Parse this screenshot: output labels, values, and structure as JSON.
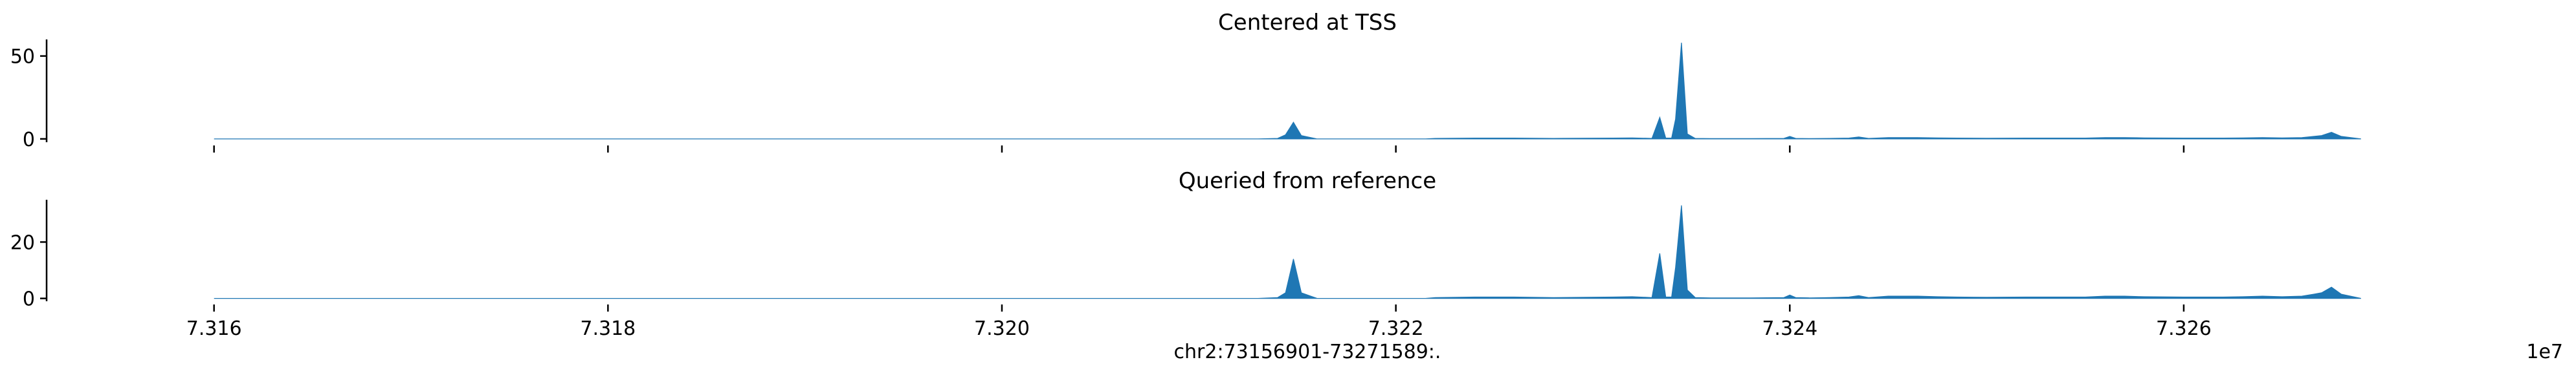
{
  "chart_data": [
    {
      "type": "area",
      "title": "Centered at TSS",
      "xlabel": "",
      "ylabel": "",
      "yticks": [
        0,
        50
      ],
      "ylim": [
        -2,
        60
      ],
      "xlim": [
        73151500,
        73274000
      ],
      "xticks_shown": false,
      "color": "#1f77b4",
      "x": [
        73160000,
        73170000,
        73210000,
        73213000,
        73214000,
        73214400,
        73214800,
        73215200,
        73216000,
        73218000,
        73221500,
        73222000,
        73224000,
        73226000,
        73228000,
        73231000,
        73232000,
        73233000,
        73233400,
        73233700,
        73234000,
        73234200,
        73234500,
        73234800,
        73235200,
        73236000,
        73238000,
        73239700,
        73240000,
        73240300,
        73241000,
        73242000,
        73243000,
        73243500,
        73244000,
        73245000,
        73246500,
        73247500,
        73248500,
        73250000,
        73252000,
        73255000,
        73256000,
        73257000,
        73258000,
        73260000,
        73262000,
        73263000,
        73264000,
        73265000,
        73266000,
        73266600,
        73267000,
        73267500,
        73268000,
        73269000
      ],
      "values": [
        0,
        0,
        0,
        0,
        0.3,
        2.5,
        10,
        2,
        0,
        0,
        0,
        0.3,
        0.5,
        0.5,
        0.3,
        0.5,
        0.6,
        0.3,
        13,
        0.5,
        0.5,
        12,
        58,
        3,
        0.3,
        0.2,
        0.2,
        0.3,
        1.5,
        0.3,
        0.2,
        0.3,
        0.5,
        1.2,
        0.3,
        0.8,
        0.8,
        0.6,
        0.5,
        0.4,
        0.5,
        0.5,
        0.8,
        0.8,
        0.6,
        0.5,
        0.5,
        0.6,
        0.8,
        0.6,
        0.8,
        1.5,
        2,
        4,
        1.5,
        0
      ]
    },
    {
      "type": "area",
      "title": "Queried from reference",
      "xlabel": "chr2:73156901-73271589:.",
      "ylabel": "",
      "yticks": [
        0,
        20
      ],
      "ylim": [
        -1,
        35
      ],
      "xlim": [
        73151500,
        73274000
      ],
      "xticks": [
        7.316,
        7.318,
        7.32,
        7.322,
        7.324,
        7.326
      ],
      "xtick_labels": [
        "7.316",
        "7.318",
        "7.320",
        "7.322",
        "7.324",
        "7.326"
      ],
      "x_offset_label": "1e7",
      "color": "#1f77b4",
      "x": [
        73160000,
        73170000,
        73210000,
        73213000,
        73214000,
        73214400,
        73214800,
        73215200,
        73216000,
        73218000,
        73221500,
        73222000,
        73224000,
        73226000,
        73228000,
        73231000,
        73232000,
        73233000,
        73233400,
        73233700,
        73234000,
        73234200,
        73234500,
        73234800,
        73235200,
        73236000,
        73238000,
        73239700,
        73240000,
        73240300,
        73241000,
        73242000,
        73243000,
        73243500,
        73244000,
        73245000,
        73246500,
        73247500,
        73248500,
        73250000,
        73252000,
        73255000,
        73256000,
        73257000,
        73258000,
        73260000,
        73262000,
        73263000,
        73264000,
        73265000,
        73266000,
        73266600,
        73267000,
        73267500,
        73268000,
        73269000
      ],
      "values": [
        0,
        0,
        0,
        0,
        0.3,
        2,
        14,
        2,
        0,
        0,
        0,
        0.3,
        0.5,
        0.5,
        0.3,
        0.5,
        0.6,
        0.3,
        16,
        0.5,
        0.5,
        11,
        33,
        3,
        0.3,
        0.2,
        0.2,
        0.3,
        1.2,
        0.3,
        0.2,
        0.3,
        0.5,
        1,
        0.3,
        0.8,
        0.8,
        0.6,
        0.5,
        0.4,
        0.5,
        0.5,
        0.8,
        0.8,
        0.6,
        0.5,
        0.5,
        0.6,
        0.8,
        0.6,
        0.8,
        1.5,
        2,
        4,
        1.5,
        0
      ]
    }
  ]
}
